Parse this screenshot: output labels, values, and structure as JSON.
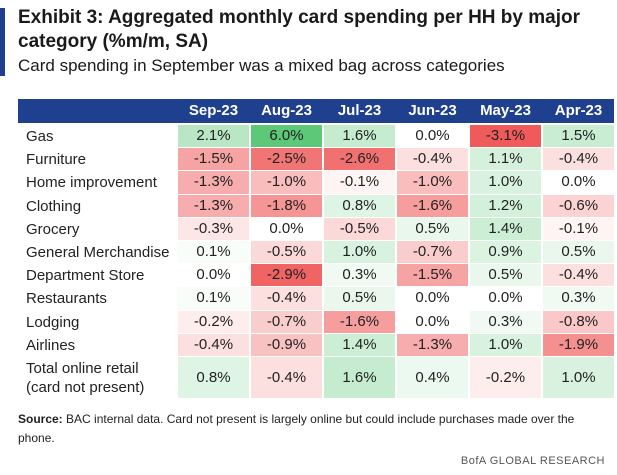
{
  "header": {
    "title": "Exhibit 3: Aggregated monthly card spending per HH by major category (%m/m, SA)",
    "subtitle": "Card spending in September was a mixed bag across categories"
  },
  "chart_data": {
    "type": "table",
    "unit": "%",
    "columns": [
      "Sep-23",
      "Aug-23",
      "Jul-23",
      "Jun-23",
      "May-23",
      "Apr-23"
    ],
    "rows": [
      {
        "label": "Gas",
        "values": [
          2.1,
          6.0,
          1.6,
          0.0,
          -3.1,
          1.5
        ]
      },
      {
        "label": "Furniture",
        "values": [
          -1.5,
          -2.5,
          -2.6,
          -0.4,
          1.1,
          -0.4
        ]
      },
      {
        "label": "Home improvement",
        "values": [
          -1.3,
          -1.0,
          -0.1,
          -1.0,
          1.0,
          0.0
        ]
      },
      {
        "label": "Clothing",
        "values": [
          -1.3,
          -1.8,
          0.8,
          -1.6,
          1.2,
          -0.6
        ]
      },
      {
        "label": "Grocery",
        "values": [
          -0.3,
          0.0,
          -0.5,
          0.5,
          1.4,
          -0.1
        ]
      },
      {
        "label": "General Merchandise",
        "values": [
          0.1,
          -0.5,
          1.0,
          -0.7,
          0.9,
          0.5
        ]
      },
      {
        "label": "Department Store",
        "values": [
          0.0,
          -2.9,
          0.3,
          -1.5,
          0.5,
          -0.4
        ]
      },
      {
        "label": "Restaurants",
        "values": [
          0.1,
          -0.4,
          0.5,
          0.0,
          0.0,
          0.3
        ]
      },
      {
        "label": "Lodging",
        "values": [
          -0.2,
          -0.7,
          -1.6,
          0.0,
          0.3,
          -0.8
        ]
      },
      {
        "label": "Airlines",
        "values": [
          -0.4,
          -0.9,
          1.4,
          -1.3,
          1.0,
          -1.9
        ]
      },
      {
        "label": "Total online retail (card not present)",
        "values": [
          0.8,
          -0.4,
          1.6,
          0.4,
          -0.2,
          1.0
        ]
      }
    ],
    "colors": {
      "header": "#1f3f8f",
      "positive_max": "#5cc878",
      "negative_max": "#ef5b5b",
      "neutral": "#ffffff"
    }
  },
  "footer": {
    "source_label": "Source:",
    "source_text": "BAC internal data. Card not present is largely online but could include purchases made over the phone.",
    "brand": "BofA GLOBAL RESEARCH"
  }
}
